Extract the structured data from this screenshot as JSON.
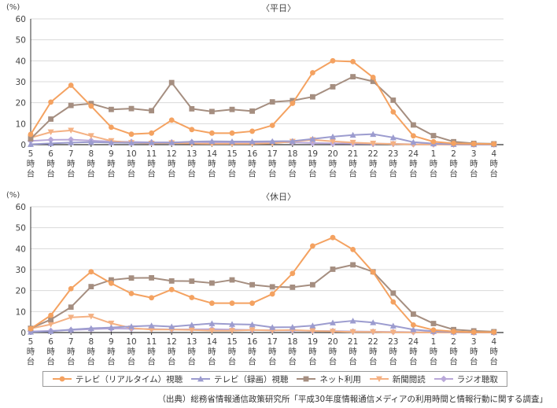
{
  "colors": {
    "tv_live": "#F4A261",
    "tv_recorded": "#9C9CCF",
    "net": "#A58E80",
    "newspaper": "#F4B183",
    "radio": "#B9A8D9",
    "axis": "#333333",
    "grid": "#D9D9D9"
  },
  "chart_data": [
    {
      "type": "line",
      "title": "〈平日〉",
      "ylabel": "(%)",
      "ylim": [
        0,
        60
      ],
      "yticks": [
        "0",
        "10",
        "20",
        "30",
        "40",
        "50",
        "60"
      ],
      "grid": true,
      "categories": [
        "5時台",
        "6時台",
        "7時台",
        "8時台",
        "9時台",
        "10時台",
        "11時台",
        "12時台",
        "13時台",
        "14時台",
        "15時台",
        "16時台",
        "17時台",
        "18時台",
        "19時台",
        "20時台",
        "21時台",
        "22時台",
        "23時台",
        "24時台",
        "1時台",
        "2時台",
        "3時台",
        "4時台"
      ],
      "series": [
        {
          "name": "テレビ（リアルタイム）視聴",
          "key": "tv_live",
          "marker": "circle",
          "values": [
            4.9,
            20.3,
            28.3,
            18.4,
            8.3,
            5.0,
            5.5,
            11.7,
            7.2,
            5.5,
            5.5,
            6.4,
            9.2,
            19.7,
            34.3,
            40.0,
            39.6,
            32.1,
            15.6,
            4.2,
            1.4,
            0.6,
            0.4,
            0.3
          ]
        },
        {
          "name": "テレビ（録画）視聴",
          "key": "tv_recorded",
          "marker": "triangle",
          "values": [
            0.2,
            0.6,
            1.0,
            1.2,
            1.0,
            0.9,
            1.0,
            1.0,
            1.4,
            1.6,
            1.5,
            1.5,
            1.6,
            1.7,
            2.7,
            3.8,
            4.6,
            5.0,
            3.4,
            1.2,
            0.5,
            0.2,
            0.1,
            0.1
          ]
        },
        {
          "name": "ネット利用",
          "key": "net",
          "marker": "square",
          "values": [
            2.8,
            12.2,
            18.7,
            19.6,
            16.8,
            17.2,
            16.2,
            29.6,
            17.1,
            15.8,
            16.8,
            16.0,
            20.4,
            21.0,
            22.8,
            27.6,
            32.4,
            30.2,
            21.2,
            9.4,
            4.3,
            1.4,
            0.6,
            0.4
          ]
        },
        {
          "name": "新聞閲読",
          "key": "newspaper",
          "marker": "triangle-down",
          "values": [
            3.3,
            6.0,
            6.8,
            4.2,
            1.8,
            0.9,
            0.6,
            0.8,
            0.5,
            0.4,
            0.4,
            0.4,
            0.6,
            1.5,
            2.3,
            1.6,
            1.0,
            0.6,
            0.3,
            0.1,
            0.1,
            0.0,
            0.0,
            0.1
          ]
        },
        {
          "name": "ラジオ聴取",
          "key": "radio",
          "marker": "diamond",
          "values": [
            1.8,
            2.3,
            2.4,
            1.9,
            1.5,
            1.3,
            1.1,
            1.1,
            1.2,
            1.1,
            1.0,
            1.0,
            1.2,
            1.1,
            0.8,
            0.6,
            0.5,
            0.4,
            0.4,
            0.2,
            0.1,
            0.1,
            0.1,
            0.1
          ]
        }
      ]
    },
    {
      "type": "line",
      "title": "〈休日〉",
      "ylabel": "(%)",
      "ylim": [
        0,
        60
      ],
      "yticks": [
        "0",
        "10",
        "20",
        "30",
        "40",
        "50",
        "60"
      ],
      "grid": true,
      "categories": [
        "5時台",
        "6時台",
        "7時台",
        "8時台",
        "9時台",
        "10時台",
        "11時台",
        "12時台",
        "13時台",
        "14時台",
        "15時台",
        "16時台",
        "17時台",
        "18時台",
        "19時台",
        "20時台",
        "21時台",
        "22時台",
        "23時台",
        "24時台",
        "1時台",
        "2時台",
        "3時台",
        "4時台"
      ],
      "series": [
        {
          "name": "テレビ（リアルタイム）視聴",
          "key": "tv_live",
          "marker": "circle",
          "values": [
            1.8,
            8.2,
            20.9,
            29.0,
            23.5,
            18.6,
            16.6,
            20.5,
            16.7,
            14.0,
            14.0,
            14.0,
            18.4,
            28.2,
            41.3,
            45.3,
            39.6,
            28.8,
            14.6,
            3.6,
            1.2,
            0.5,
            0.2,
            0.2
          ]
        },
        {
          "name": "テレビ（録画）視聴",
          "key": "tv_recorded",
          "marker": "triangle",
          "values": [
            0.3,
            0.6,
            1.4,
            2.0,
            2.4,
            2.9,
            3.3,
            2.8,
            3.6,
            4.3,
            4.0,
            3.8,
            2.5,
            2.6,
            3.3,
            4.7,
            5.6,
            4.8,
            3.2,
            1.4,
            0.6,
            0.3,
            0.1,
            0.1
          ]
        },
        {
          "name": "ネット利用",
          "key": "net",
          "marker": "square",
          "values": [
            2.0,
            6.2,
            12.1,
            21.9,
            25.1,
            26.0,
            26.1,
            24.6,
            24.5,
            23.6,
            25.1,
            22.8,
            21.8,
            21.6,
            22.8,
            30.2,
            32.3,
            29.0,
            18.8,
            8.8,
            4.3,
            1.4,
            0.8,
            0.4
          ]
        },
        {
          "name": "新聞閲読",
          "key": "newspaper",
          "marker": "triangle-down",
          "values": [
            1.9,
            3.9,
            7.2,
            7.7,
            4.4,
            2.1,
            1.4,
            1.4,
            1.2,
            0.9,
            0.9,
            1.2,
            1.0,
            1.2,
            0.8,
            0.5,
            0.3,
            0.3,
            0.1,
            0.1,
            0.0,
            0.0,
            0.0,
            0.0
          ]
        },
        {
          "name": "ラジオ聴取",
          "key": "radio",
          "marker": "diamond",
          "values": [
            0.5,
            0.8,
            1.2,
            1.6,
            1.9,
            1.8,
            1.7,
            1.5,
            1.5,
            1.6,
            1.4,
            1.2,
            1.1,
            1.0,
            0.8,
            0.7,
            0.5,
            0.4,
            0.3,
            0.2,
            0.1,
            0.1,
            0.1,
            0.0
          ]
        }
      ]
    }
  ],
  "legend": [
    {
      "key": "tv_live",
      "marker": "circle",
      "label": "テレビ（リアルタイム）視聴"
    },
    {
      "key": "tv_recorded",
      "marker": "triangle",
      "label": "テレビ（録画）視聴"
    },
    {
      "key": "net",
      "marker": "square",
      "label": "ネット利用"
    },
    {
      "key": "newspaper",
      "marker": "triangle-down",
      "label": "新聞閲読"
    },
    {
      "key": "radio",
      "marker": "diamond",
      "label": "ラジオ聴取"
    }
  ],
  "source": "（出典）総務省情報通信政策研究所「平成30年度情報通信メディアの利用時間と情報行動に関する調査」"
}
